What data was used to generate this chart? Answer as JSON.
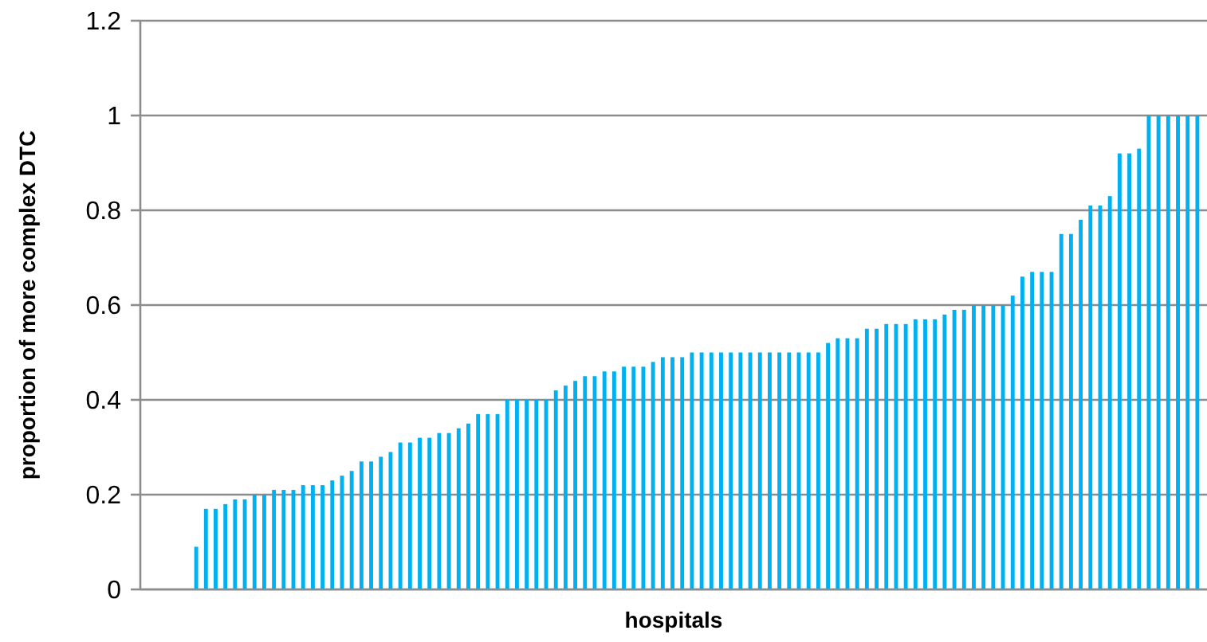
{
  "chart_data": {
    "type": "bar",
    "xlabel": "hospitals",
    "ylabel": "proportion of more complex DTC",
    "categories": [
      null,
      null,
      null,
      null,
      null,
      null,
      null,
      null,
      null,
      null,
      null,
      null,
      null,
      null,
      null,
      null,
      null,
      null,
      null,
      null,
      null,
      null,
      null,
      null,
      null,
      null,
      null,
      null,
      null,
      null,
      null,
      null,
      null,
      null,
      null,
      null,
      null,
      null,
      null,
      null,
      null,
      null,
      null,
      null,
      null,
      null,
      null,
      null,
      null,
      null,
      null,
      null,
      null,
      null,
      null,
      null,
      null,
      null,
      null,
      null,
      null,
      null,
      null,
      null,
      null,
      null,
      null,
      null,
      null,
      null,
      null,
      null,
      null,
      null,
      null,
      null,
      null,
      null,
      null,
      null,
      null,
      null,
      null,
      null,
      null,
      null,
      null,
      null,
      null,
      null,
      null,
      null,
      null,
      null,
      null,
      null,
      null,
      null,
      null,
      null,
      null,
      null,
      null,
      null
    ],
    "values": [
      0.09,
      0.17,
      0.17,
      0.18,
      0.19,
      0.19,
      0.2,
      0.2,
      0.21,
      0.21,
      0.21,
      0.22,
      0.22,
      0.22,
      0.23,
      0.24,
      0.25,
      0.27,
      0.27,
      0.28,
      0.29,
      0.31,
      0.31,
      0.32,
      0.32,
      0.33,
      0.33,
      0.34,
      0.35,
      0.37,
      0.37,
      0.37,
      0.4,
      0.4,
      0.4,
      0.4,
      0.4,
      0.42,
      0.43,
      0.44,
      0.45,
      0.45,
      0.46,
      0.46,
      0.47,
      0.47,
      0.47,
      0.48,
      0.49,
      0.49,
      0.49,
      0.5,
      0.5,
      0.5,
      0.5,
      0.5,
      0.5,
      0.5,
      0.5,
      0.5,
      0.5,
      0.5,
      0.5,
      0.5,
      0.5,
      0.52,
      0.53,
      0.53,
      0.53,
      0.55,
      0.55,
      0.56,
      0.56,
      0.56,
      0.57,
      0.57,
      0.57,
      0.58,
      0.59,
      0.59,
      0.6,
      0.6,
      0.6,
      0.6,
      0.62,
      0.66,
      0.67,
      0.67,
      0.67,
      0.75,
      0.75,
      0.78,
      0.81,
      0.81,
      0.83,
      0.92,
      0.92,
      0.93,
      1,
      1,
      1,
      1,
      1,
      1
    ],
    "color": "#00b0f0",
    "ylim": [
      0,
      1.2
    ],
    "yticks": [
      0,
      0.2,
      0.4,
      0.6,
      0.8,
      1,
      1.2
    ],
    "grid": "y"
  }
}
